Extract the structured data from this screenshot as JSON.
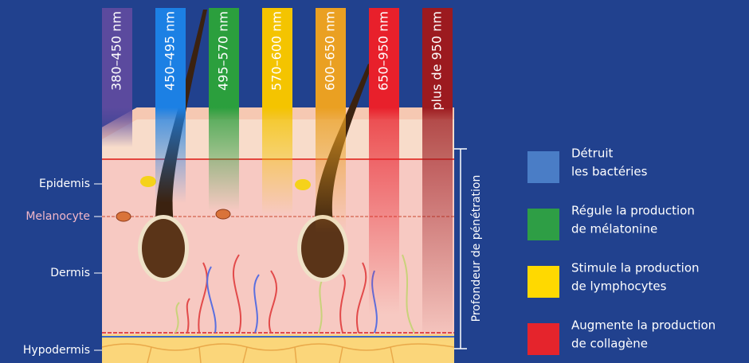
{
  "bands": [
    {
      "label": "380–450 nm",
      "color": "#5b4a9e"
    },
    {
      "label": "450–495 nm",
      "color": "#1c80e4"
    },
    {
      "label": "495–570 nm",
      "color": "#2b9f3d"
    },
    {
      "label": "570–600 nm",
      "color": "#f4c400"
    },
    {
      "label": "600–650 nm",
      "color": "#eaa022"
    },
    {
      "label": "650–950 nm",
      "color": "#e8202b"
    },
    {
      "label": "plus de 950 nm",
      "color": "#9c1a1f"
    }
  ],
  "layers": [
    {
      "label": "Epidemis"
    },
    {
      "label": "Melanocyte"
    },
    {
      "label": "Dermis"
    },
    {
      "label": "Hypodermis"
    }
  ],
  "depth_label": "Profondeur de pénétration",
  "legend": [
    {
      "lines": [
        "Détruit",
        "les bactéries"
      ],
      "color": "#4a7dc6"
    },
    {
      "lines": [
        "Régule la production",
        "de mélatonine"
      ],
      "color": "#2e9e45"
    },
    {
      "lines": [
        "Stimule la production",
        "de lymphocytes"
      ],
      "color": "#ffd900"
    },
    {
      "lines": [
        "Augmente la production",
        "de collagène"
      ],
      "color": "#e5242c"
    }
  ]
}
